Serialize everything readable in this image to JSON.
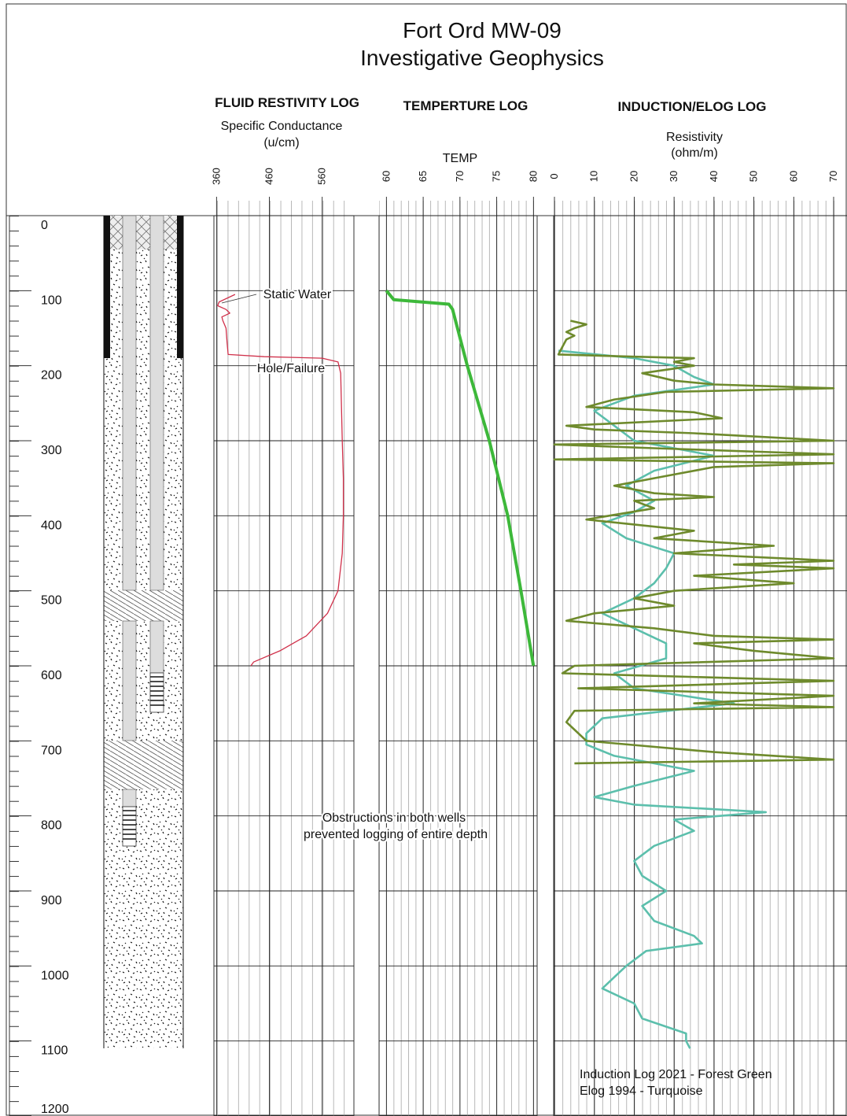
{
  "title": "Fort Ord MW-09",
  "subtitle": "Investigative Geophysics",
  "depth": {
    "xlim": [
      0,
      1200
    ],
    "xticks": [
      0,
      100,
      200,
      300,
      400,
      500,
      600,
      700,
      800,
      900,
      1000,
      1100,
      1200
    ]
  },
  "annotations": [
    "Static Water",
    "Hole/Failure",
    "Obstructions in both wells",
    "prevented logging of entire depth"
  ],
  "chart_data": [
    {
      "type": "line",
      "title": "FLUID RESTIVITY LOG",
      "subtitle": "Specific Conductance",
      "unit": "(u/cm)",
      "color": "#d0304a",
      "ylim": [
        355,
        620
      ],
      "yticks": [
        360,
        460,
        560
      ],
      "x": [
        105,
        115,
        120,
        125,
        130,
        135,
        140,
        150,
        170,
        185,
        188,
        190,
        195,
        210,
        300,
        350,
        400,
        450,
        500,
        530,
        560,
        580,
        595,
        600
      ],
      "values": [
        395,
        365,
        362,
        378,
        385,
        370,
        372,
        378,
        380,
        382,
        450,
        560,
        590,
        595,
        598,
        600,
        600,
        598,
        590,
        570,
        530,
        480,
        430,
        425
      ]
    },
    {
      "type": "line",
      "title": "TEMPERTURE LOG",
      "subtitle": "TEMP",
      "color": "#3db83a",
      "ylim": [
        59,
        80.5
      ],
      "yticks": [
        60,
        65,
        70,
        75,
        80
      ],
      "x": [
        100,
        112,
        118,
        125,
        200,
        300,
        400,
        500,
        600
      ],
      "values": [
        60,
        61,
        68.5,
        69,
        71,
        74,
        76.5,
        78.3,
        80
      ]
    },
    {
      "type": "line",
      "title": "INDUCTION/ELOG LOG",
      "subtitle": "Resistivity",
      "unit": "(ohm/m)",
      "ylim": [
        0,
        70
      ],
      "yticks": [
        0,
        10,
        20,
        30,
        40,
        50,
        60,
        70
      ],
      "series": [
        {
          "name": "Induction Log 2021 - Forest Green",
          "color": "#6e8a2c",
          "x": [
            140,
            145,
            150,
            155,
            160,
            165,
            175,
            185,
            188,
            190,
            195,
            200,
            210,
            220,
            225,
            230,
            235,
            245,
            255,
            262,
            270,
            280,
            285,
            290,
            300,
            305,
            310,
            318,
            325,
            330,
            335,
            345,
            360,
            370,
            375,
            380,
            390,
            405,
            420,
            430,
            440,
            450,
            460,
            465,
            470,
            480,
            490,
            500,
            510,
            520,
            530,
            540,
            550,
            560,
            565,
            570,
            580,
            590,
            600,
            610,
            620,
            630,
            640,
            650,
            655,
            660,
            675,
            700,
            715,
            725,
            730
          ],
          "values": [
            4,
            8,
            5,
            3,
            5,
            3,
            2,
            1,
            20,
            35,
            30,
            35,
            22,
            30,
            40,
            70,
            28,
            15,
            8,
            35,
            42,
            3,
            10,
            35,
            70,
            0,
            25,
            70,
            0,
            70,
            40,
            30,
            15,
            25,
            40,
            20,
            25,
            8,
            35,
            25,
            55,
            30,
            70,
            45,
            70,
            35,
            60,
            30,
            20,
            30,
            10,
            3,
            25,
            40,
            70,
            35,
            50,
            70,
            5,
            2,
            70,
            6,
            70,
            35,
            70,
            5,
            3,
            8,
            40,
            70,
            5
          ]
        },
        {
          "name": "Elog 1994 - Turquoise",
          "color": "#5cbfac",
          "x": [
            180,
            190,
            200,
            215,
            225,
            240,
            260,
            280,
            300,
            320,
            340,
            360,
            380,
            395,
            410,
            430,
            450,
            470,
            490,
            510,
            530,
            550,
            570,
            590,
            610,
            630,
            650,
            670,
            690,
            705,
            720,
            740,
            760,
            775,
            785,
            795,
            805,
            820,
            840,
            860,
            880,
            900,
            920,
            940,
            960,
            970,
            980,
            1000,
            1015,
            1030,
            1050,
            1070,
            1090,
            1100,
            1110
          ],
          "values": [
            1,
            20,
            30,
            35,
            40,
            20,
            10,
            15,
            20,
            40,
            25,
            18,
            25,
            20,
            12,
            18,
            30,
            28,
            25,
            20,
            12,
            20,
            28,
            28,
            15,
            20,
            45,
            12,
            8,
            8,
            15,
            35,
            20,
            10,
            20,
            53,
            30,
            35,
            25,
            20,
            22,
            28,
            22,
            25,
            35,
            37,
            23,
            18,
            15,
            12,
            20,
            22,
            33,
            33,
            34
          ]
        }
      ]
    }
  ]
}
